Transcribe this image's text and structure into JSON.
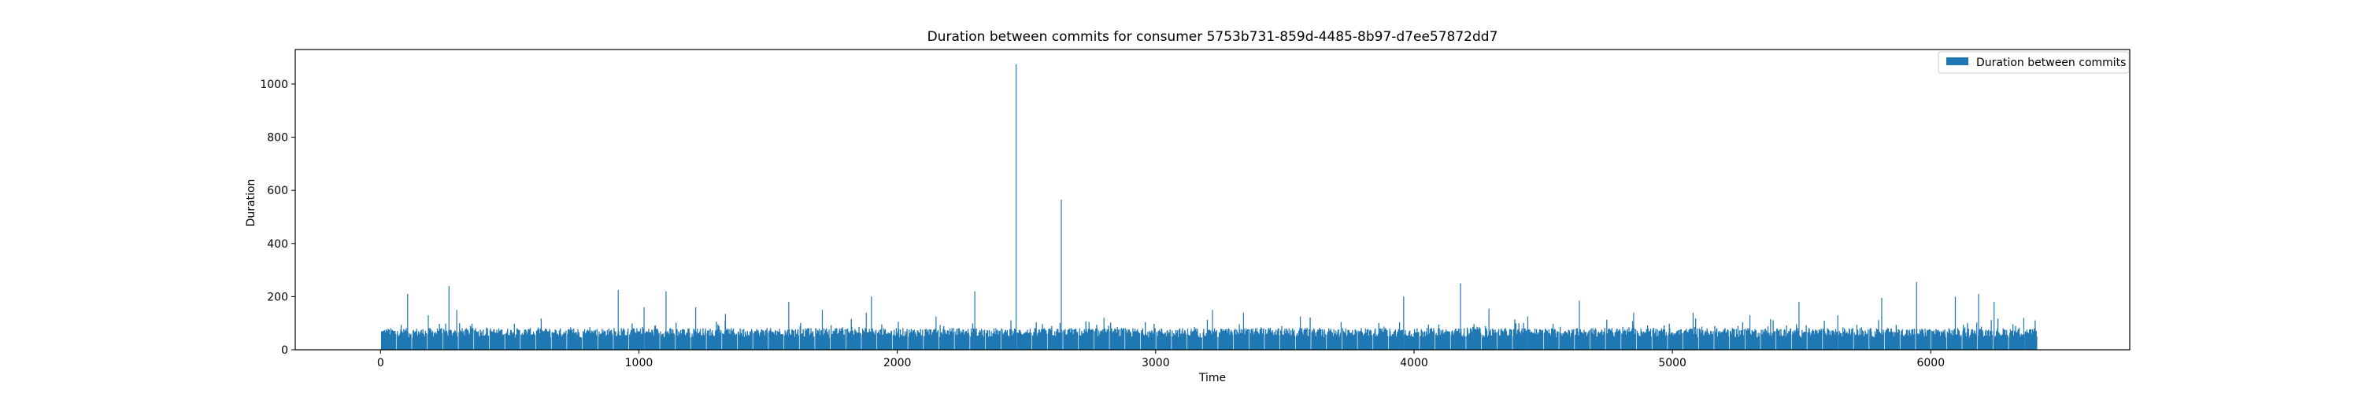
{
  "chart_data": {
    "type": "bar",
    "title": "Duration between commits for consumer 5753b731-859d-4485-8b97-d7ee57872dd7",
    "xlabel": "Time",
    "ylabel": "Duration",
    "xlim": [
      -330,
      6770
    ],
    "ylim": [
      0,
      1130
    ],
    "xticks": [
      0,
      1000,
      2000,
      3000,
      4000,
      5000,
      6000
    ],
    "yticks": [
      0,
      200,
      400,
      600,
      800,
      1000
    ],
    "grid": false,
    "legend": {
      "position": "top-right"
    },
    "x_start": 0,
    "x_end": 6410,
    "baseline_range": [
      45,
      82
    ],
    "gap_every": 60,
    "series": [
      {
        "name": "Duration between commits",
        "color": "#1f77b4",
        "spikes": [
          {
            "x": 2460,
            "y": 1075
          },
          {
            "x": 2635,
            "y": 565
          },
          {
            "x": 265,
            "y": 240
          },
          {
            "x": 920,
            "y": 225
          },
          {
            "x": 1105,
            "y": 220
          },
          {
            "x": 2300,
            "y": 220
          },
          {
            "x": 4180,
            "y": 250
          },
          {
            "x": 5945,
            "y": 255
          },
          {
            "x": 105,
            "y": 210
          },
          {
            "x": 1900,
            "y": 200
          },
          {
            "x": 3960,
            "y": 200
          },
          {
            "x": 6185,
            "y": 210
          },
          {
            "x": 6095,
            "y": 200
          },
          {
            "x": 5810,
            "y": 195
          },
          {
            "x": 4640,
            "y": 185
          },
          {
            "x": 1580,
            "y": 180
          },
          {
            "x": 5490,
            "y": 180
          },
          {
            "x": 6245,
            "y": 180
          },
          {
            "x": 295,
            "y": 150
          },
          {
            "x": 1220,
            "y": 160
          },
          {
            "x": 1020,
            "y": 160
          },
          {
            "x": 1710,
            "y": 150
          },
          {
            "x": 4290,
            "y": 155
          },
          {
            "x": 5080,
            "y": 140
          },
          {
            "x": 3220,
            "y": 150
          },
          {
            "x": 3340,
            "y": 140
          },
          {
            "x": 1880,
            "y": 140
          },
          {
            "x": 4850,
            "y": 140
          },
          {
            "x": 185,
            "y": 130
          },
          {
            "x": 1335,
            "y": 135
          },
          {
            "x": 2150,
            "y": 125
          },
          {
            "x": 2800,
            "y": 120
          },
          {
            "x": 3560,
            "y": 125
          },
          {
            "x": 4440,
            "y": 125
          },
          {
            "x": 5300,
            "y": 130
          },
          {
            "x": 5640,
            "y": 130
          },
          {
            "x": 6360,
            "y": 120
          }
        ]
      }
    ]
  }
}
